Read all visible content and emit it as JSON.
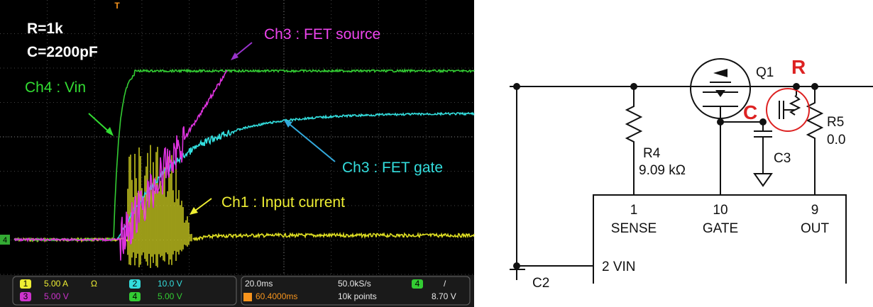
{
  "scope": {
    "markers": {
      "trigger": "T",
      "ch4_level": "4"
    },
    "annotations": {
      "r": "R=1k",
      "c": "C=2200pF",
      "ch4": "Ch4 : Vin",
      "ch3_source": "Ch3 : FET source",
      "ch3_gate": "Ch3 : FET gate",
      "ch1": "Ch1 : Input current"
    },
    "status": {
      "ch1": {
        "num": "1",
        "scale": "5.00 A",
        "unit_icon": "Ω"
      },
      "ch2": {
        "num": "2",
        "scale": "10.0 V"
      },
      "ch3": {
        "num": "3",
        "scale": "5.00 V"
      },
      "ch4": {
        "num": "4",
        "scale": "5.00 V"
      },
      "timebase": "20.0ms",
      "sample_rate": "50.0kS/s",
      "trigger_pos": "60.4000ms",
      "record": "10k points",
      "trigger": {
        "num": "4",
        "slope": "/",
        "level": "8.70 V"
      }
    }
  },
  "schematic": {
    "q1": "Q1",
    "highlight_r": "R",
    "highlight_c": "C",
    "r4": {
      "name": "R4",
      "value": "9.09 kΩ"
    },
    "r5": {
      "name": "R5",
      "value": "0.0"
    },
    "c3": "C3",
    "c2": "C2",
    "pins": [
      {
        "num": "1",
        "name": "SENSE"
      },
      {
        "num": "10",
        "name": "GATE"
      },
      {
        "num": "9",
        "name": "OUT"
      }
    ],
    "vin_pin": "2 VIN"
  }
}
